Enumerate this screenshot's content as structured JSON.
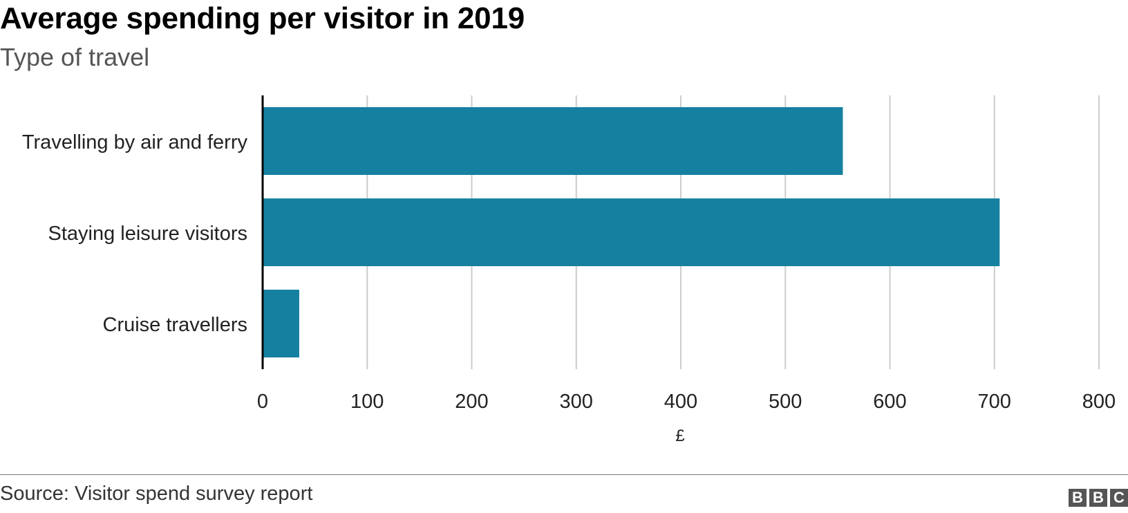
{
  "header": {
    "title": "Average spending per visitor in 2019",
    "subtitle": "Type of travel"
  },
  "footer": {
    "source": "Source: Visitor spend survey report",
    "logo_letters": [
      "B",
      "B",
      "C"
    ]
  },
  "colors": {
    "bar": "#1680a0",
    "grid": "#cccccc",
    "axis": "#000000",
    "logo": "#555555"
  },
  "chart_data": {
    "type": "bar",
    "orientation": "horizontal",
    "title": "Average spending per visitor in 2019",
    "subtitle": "Type of travel",
    "categories": [
      "Travelling by air and ferry",
      "Staying leisure visitors",
      "Cruise travellers"
    ],
    "values": [
      555,
      705,
      35
    ],
    "xlabel": "£",
    "ylabel": "",
    "xlim": [
      0,
      800
    ],
    "xticks": [
      0,
      100,
      200,
      300,
      400,
      500,
      600,
      700,
      800
    ],
    "grid": true,
    "legend": "none"
  }
}
